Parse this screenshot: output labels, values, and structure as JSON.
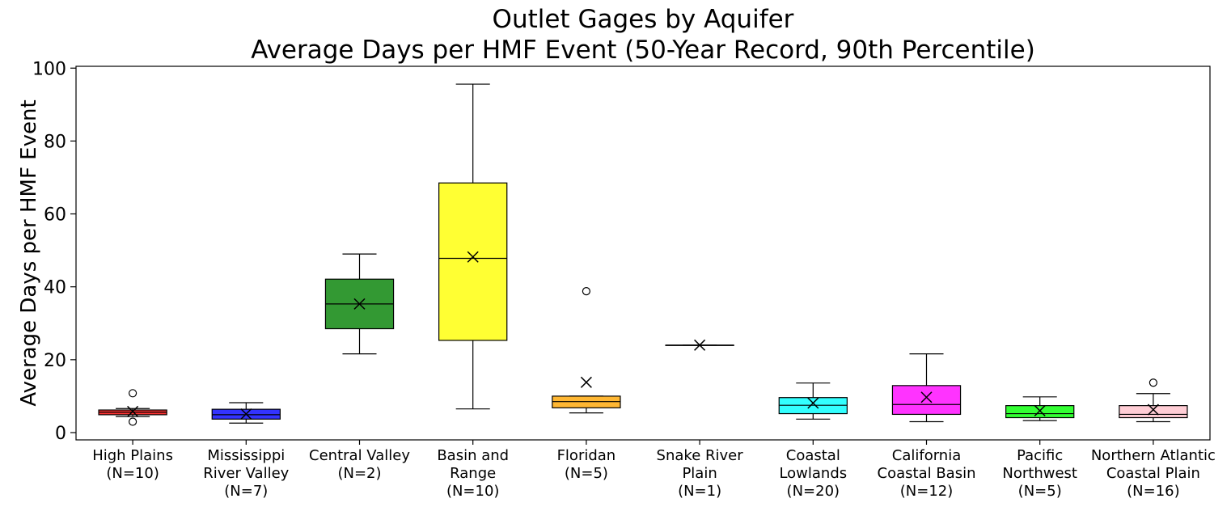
{
  "chart_data": {
    "type": "box",
    "title": [
      "Outlet Gages by Aquifer",
      "Average Days per HMF Event (50-Year Record, 90th Percentile)"
    ],
    "xlabel": "",
    "ylabel": "Average Days per HMF Event",
    "ylim": [
      -2,
      100.5
    ],
    "yticks": [
      0,
      20,
      40,
      60,
      80,
      100
    ],
    "grid": false,
    "mean_marker": "x",
    "outlier_marker": "circle",
    "categories": [
      {
        "label": [
          "High Plains",
          "(N=10)"
        ],
        "color": "#ff0000",
        "whisker_low": 4.4,
        "q1": 4.9,
        "median": 5.6,
        "q3": 6.2,
        "whisker_high": 6.6,
        "mean": 5.8,
        "outliers": [
          10.8,
          3.0
        ]
      },
      {
        "label": [
          "Mississippi",
          "River Valley",
          "(N=7)"
        ],
        "color": "#0000ff",
        "whisker_low": 2.6,
        "q1": 3.7,
        "median": 4.9,
        "q3": 6.4,
        "whisker_high": 8.2,
        "mean": 5.1,
        "outliers": []
      },
      {
        "label": [
          "Central Valley",
          "(N=2)"
        ],
        "color": "#008000",
        "whisker_low": 21.6,
        "q1": 28.5,
        "median": 35.3,
        "q3": 42.1,
        "whisker_high": 49.0,
        "mean": 35.3,
        "outliers": []
      },
      {
        "label": [
          "Basin and",
          "Range",
          "(N=10)"
        ],
        "color": "#ffff00",
        "whisker_low": 6.5,
        "q1": 25.3,
        "median": 47.8,
        "q3": 68.5,
        "whisker_high": 95.6,
        "mean": 48.2,
        "outliers": []
      },
      {
        "label": [
          "Floridan",
          "(N=5)"
        ],
        "color": "#ffa500",
        "whisker_low": 5.4,
        "q1": 6.8,
        "median": 8.5,
        "q3": 10.0,
        "whisker_high": 10.0,
        "mean": 13.8,
        "outliers": [
          38.8
        ]
      },
      {
        "label": [
          "Snake River",
          "Plain",
          "(N=1)"
        ],
        "color": "#ffffff",
        "whisker_low": 24.0,
        "q1": 24.0,
        "median": 24.0,
        "q3": 24.0,
        "whisker_high": 24.0,
        "mean": 24.0,
        "outliers": []
      },
      {
        "label": [
          "Coastal",
          "Lowlands",
          "(N=20)"
        ],
        "color": "#00ffff",
        "whisker_low": 3.7,
        "q1": 5.2,
        "median": 7.5,
        "q3": 9.6,
        "whisker_high": 13.6,
        "mean": 8.1,
        "outliers": []
      },
      {
        "label": [
          "California",
          "Coastal Basin",
          "(N=12)"
        ],
        "color": "#ff00ff",
        "whisker_low": 3.0,
        "q1": 5.0,
        "median": 7.7,
        "q3": 12.9,
        "whisker_high": 21.6,
        "mean": 9.7,
        "outliers": []
      },
      {
        "label": [
          "Pacific",
          "Northwest",
          "(N=5)"
        ],
        "color": "#00ff00",
        "whisker_low": 3.3,
        "q1": 4.1,
        "median": 5.2,
        "q3": 7.4,
        "whisker_high": 9.8,
        "mean": 6.0,
        "outliers": []
      },
      {
        "label": [
          "Northern Atlantic",
          "Coastal Plain",
          "(N=16)"
        ],
        "color": "#ffc0cb",
        "whisker_low": 3.0,
        "q1": 4.1,
        "median": 5.0,
        "q3": 7.4,
        "whisker_high": 10.7,
        "mean": 6.3,
        "outliers": [
          13.7
        ]
      }
    ]
  }
}
